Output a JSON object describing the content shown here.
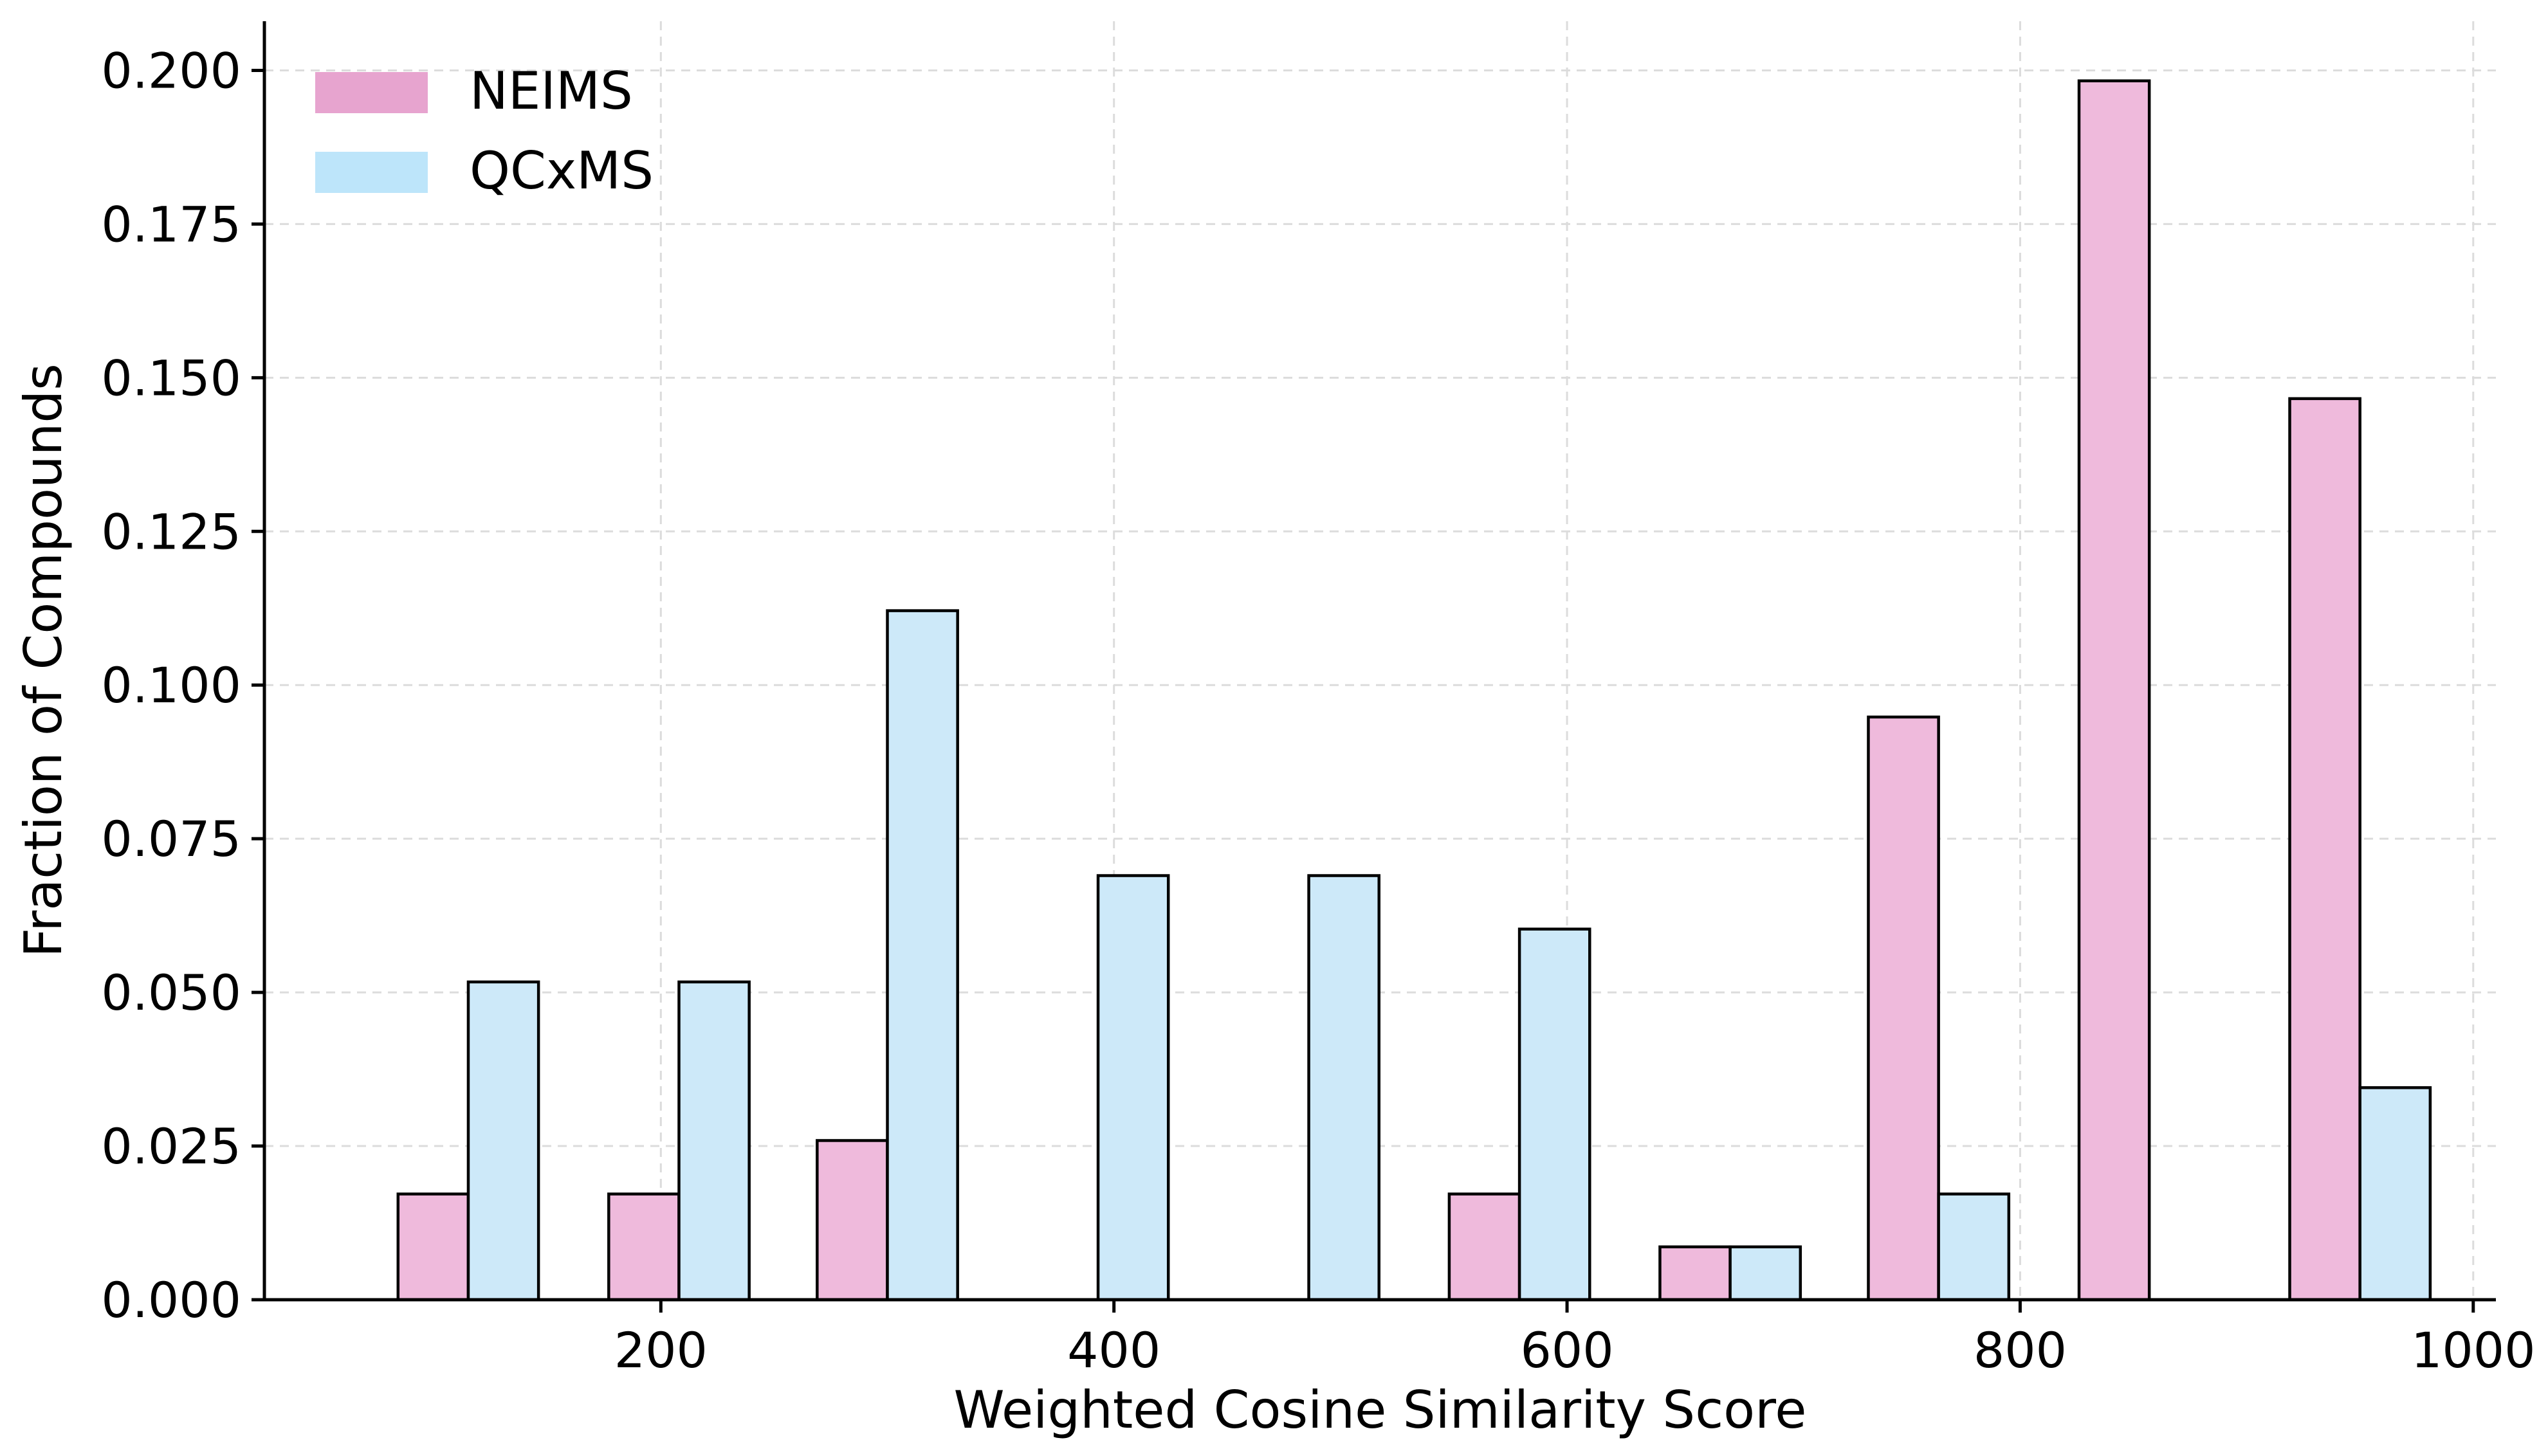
{
  "chart_data": {
    "type": "bar",
    "xlabel": "Weighted Cosine Similarity Score",
    "ylabel": "Fraction of Compounds",
    "xlim": [
      25,
      1010
    ],
    "ylim": [
      0,
      0.208
    ],
    "xticks": [
      200,
      400,
      600,
      800,
      1000
    ],
    "yticks": [
      0.0,
      0.025,
      0.05,
      0.075,
      0.1,
      0.125,
      0.15,
      0.175,
      0.2
    ],
    "ytick_labels": [
      "0.000",
      "0.025",
      "0.050",
      "0.075",
      "0.100",
      "0.125",
      "0.150",
      "0.175",
      "0.200"
    ],
    "xtick_labels": [
      "200",
      "400",
      "600",
      "800",
      "1000"
    ],
    "bin_width": 31,
    "categories": [
      115,
      208,
      300,
      393,
      486,
      579,
      672,
      764,
      857,
      950
    ],
    "series": [
      {
        "name": "NEIMS",
        "color": "#e7a4cf",
        "bar_color": "#efbadc",
        "values": [
          0.0172,
          0.0172,
          0.0259,
          0.0,
          0.0,
          0.0172,
          0.0086,
          0.0948,
          0.1983,
          0.1466
        ]
      },
      {
        "name": "QCxMS",
        "color": "#bde5fa",
        "bar_color": "#cde9f9",
        "values": [
          0.0517,
          0.0517,
          0.1121,
          0.069,
          0.069,
          0.0603,
          0.0086,
          0.0172,
          0.0,
          0.0345
        ]
      }
    ],
    "grid": true,
    "legend_position": "top-left"
  }
}
